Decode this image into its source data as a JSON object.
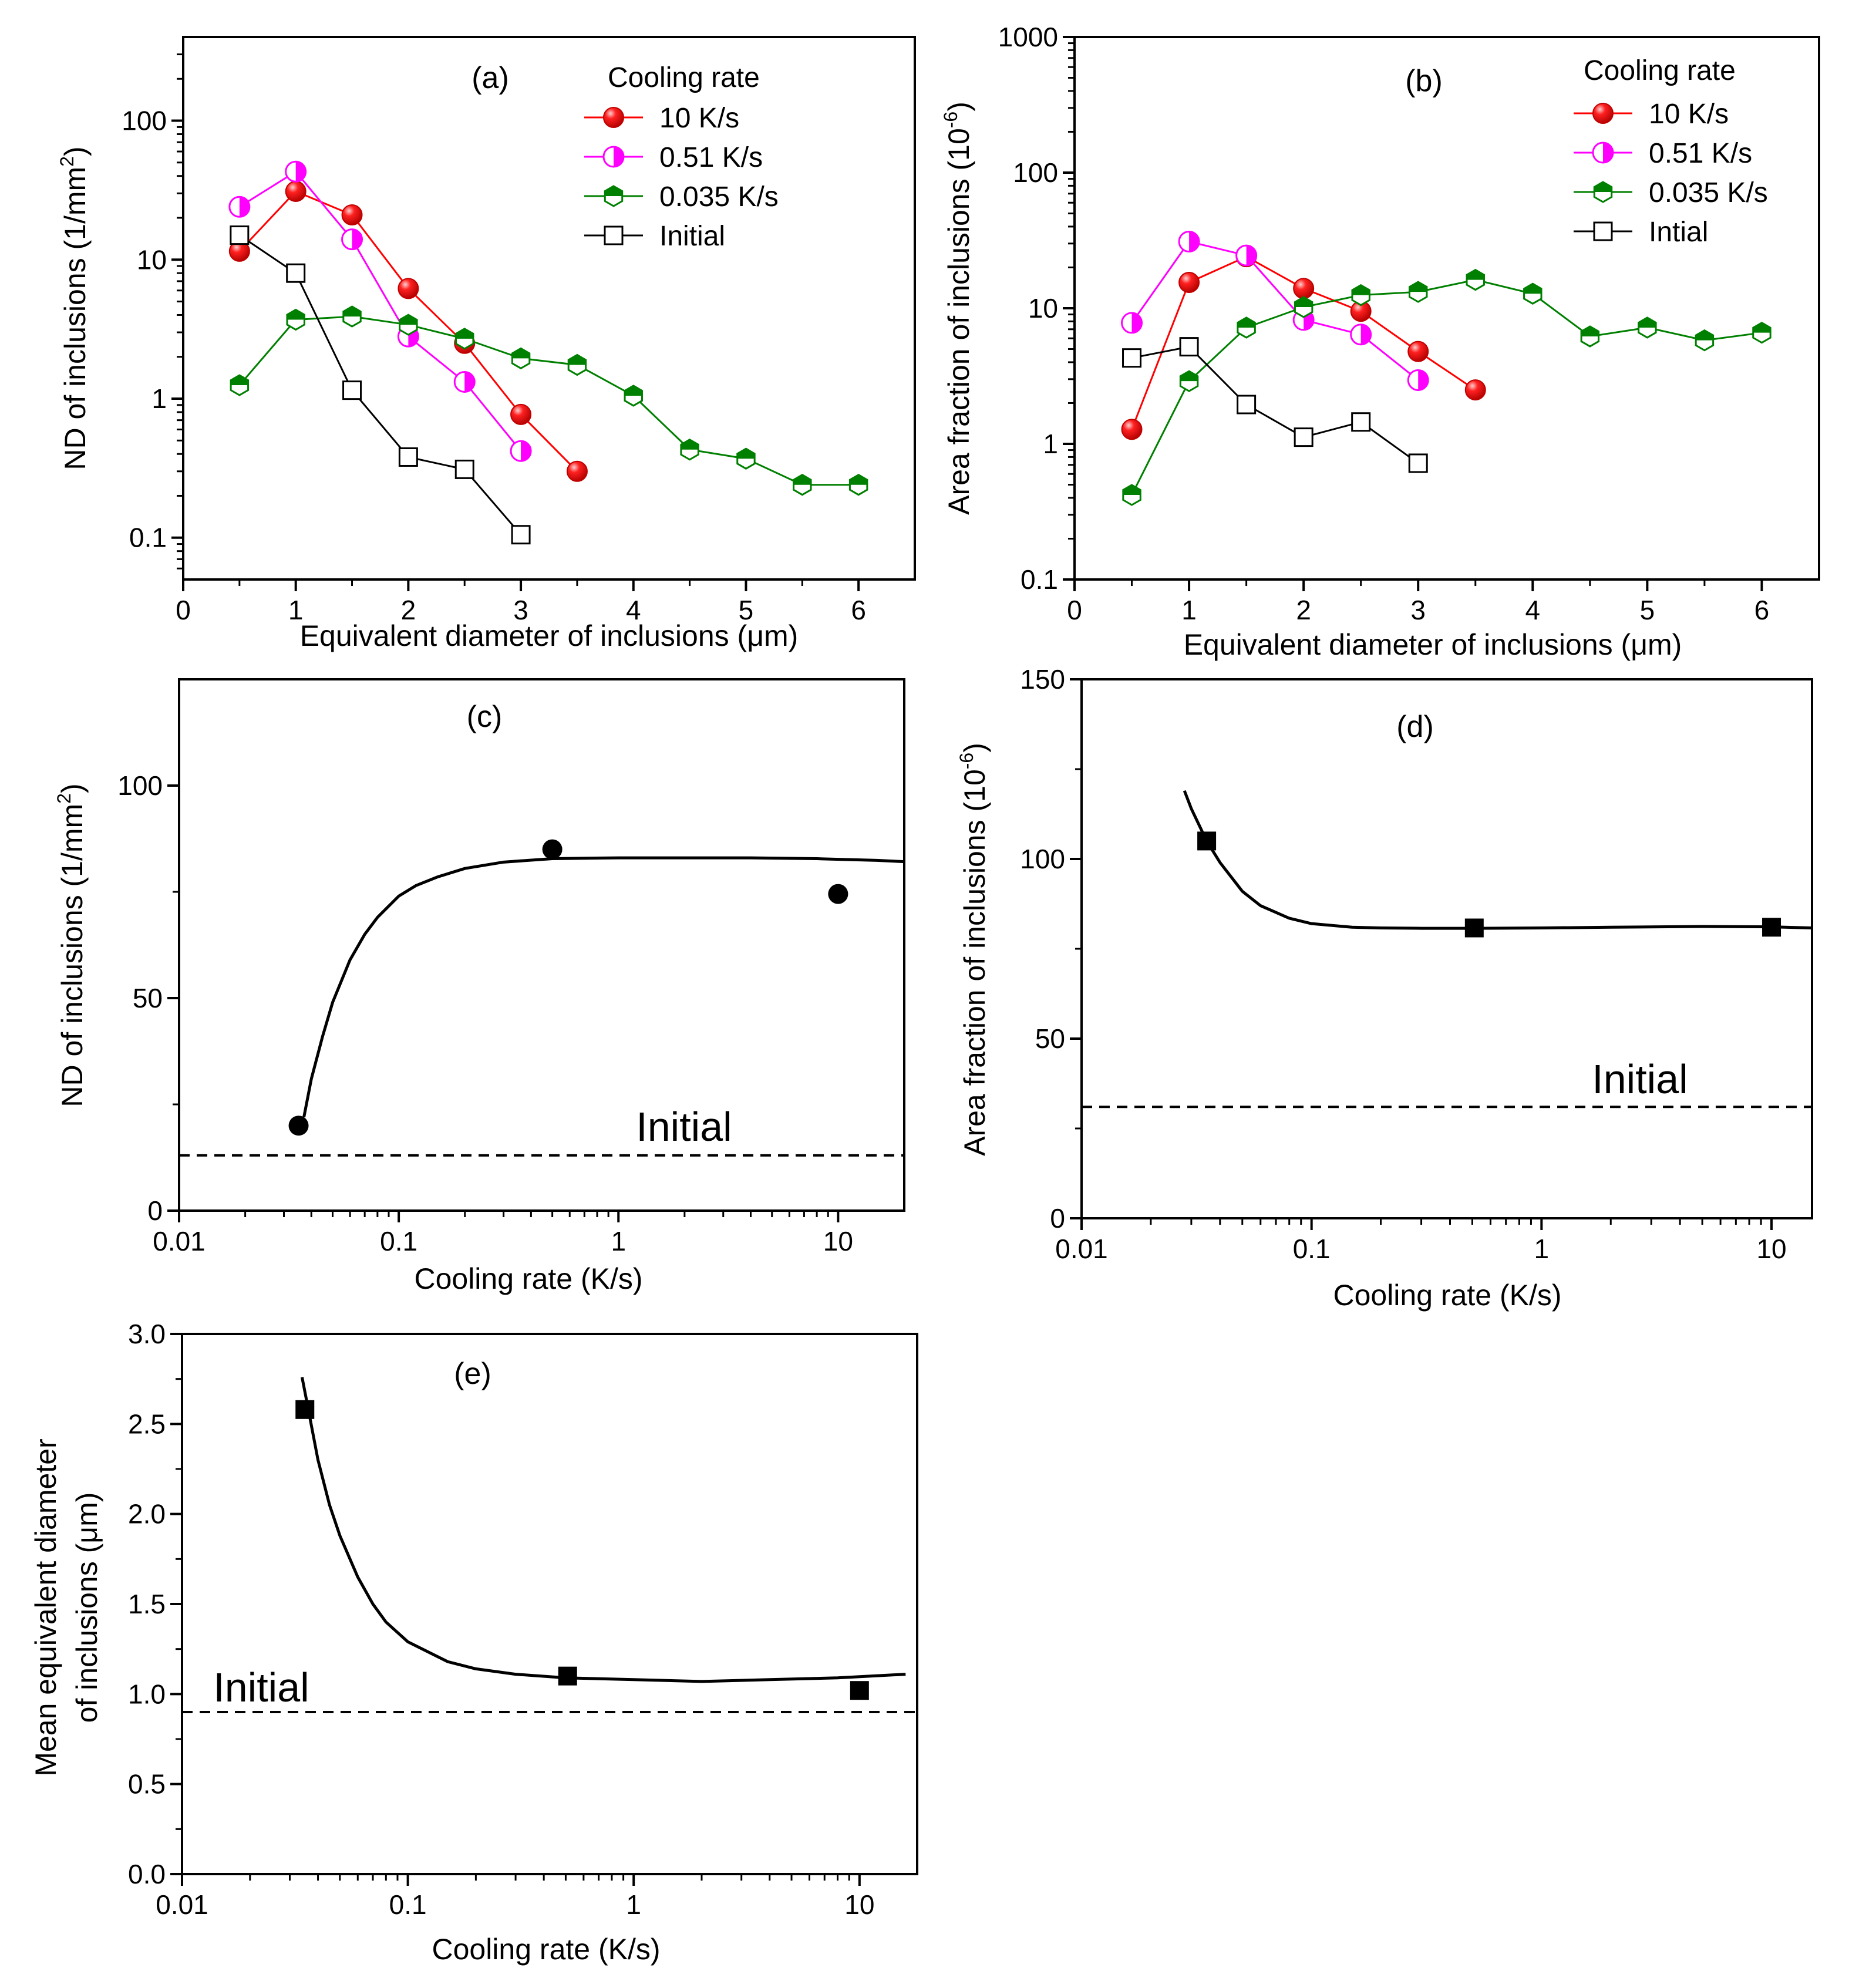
{
  "figure": {
    "panels": [
      "a",
      "b",
      "c",
      "d",
      "e"
    ]
  },
  "chart_data": [
    {
      "id": "a",
      "type": "line",
      "panel_label": "(a)",
      "xlabel_pre": "Equivalent diameter of inclusions (",
      "xlabel_unit": "μm",
      "xlabel_post": ")",
      "ylabel_pre": "ND of inclusions (1/mm",
      "ylabel_sup": "2",
      "ylabel_post": ")",
      "xscale": "linear",
      "yscale": "log",
      "xlim": [
        0,
        6.5
      ],
      "ylim": [
        0.05,
        400
      ],
      "xticks": [
        0,
        1,
        2,
        3,
        4,
        5,
        6
      ],
      "xtick_labels": [
        "0",
        "1",
        "2",
        "3",
        "4",
        "5",
        "6"
      ],
      "yticks": [
        0.1,
        1,
        10,
        100
      ],
      "ytick_labels": [
        "0.1",
        "1",
        "10",
        "100"
      ],
      "legend_title": "Cooling rate",
      "legend_position": "top-right",
      "series": [
        {
          "name": "10 K/s",
          "color": "#ff0000",
          "marker": "circle-filled",
          "x": [
            0.5,
            1.0,
            1.5,
            2.0,
            2.5,
            3.0,
            3.5
          ],
          "y": [
            11.5,
            31,
            21,
            6.2,
            2.5,
            0.77,
            0.3
          ]
        },
        {
          "name": "0.51 K/s",
          "color": "#ff00ff",
          "marker": "circle-half",
          "x": [
            0.5,
            1.0,
            1.5,
            2.0,
            2.5,
            3.0
          ],
          "y": [
            24,
            43,
            14,
            2.8,
            1.32,
            0.42
          ]
        },
        {
          "name": "0.035 K/s",
          "color": "#008000",
          "marker": "hexagon-half",
          "x": [
            0.5,
            1.0,
            1.5,
            2.0,
            2.5,
            3.0,
            3.5,
            4.0,
            4.5,
            5.0,
            5.5,
            6.0
          ],
          "y": [
            1.25,
            3.7,
            3.9,
            3.4,
            2.7,
            1.95,
            1.75,
            1.05,
            0.43,
            0.37,
            0.24,
            0.24
          ]
        },
        {
          "name": "Initial",
          "color": "#000000",
          "marker": "square-open",
          "x": [
            0.5,
            1.0,
            1.5,
            2.0,
            2.5,
            3.0
          ],
          "y": [
            15,
            8,
            1.15,
            0.38,
            0.31,
            0.105
          ]
        }
      ]
    },
    {
      "id": "b",
      "type": "line",
      "panel_label": "(b)",
      "xlabel_pre": "Equivalent diameter of inclusions (",
      "xlabel_unit": "μm",
      "xlabel_post": ")",
      "ylabel_pre": "Area fraction of inclusions (10",
      "ylabel_sup": "-6",
      "ylabel_post": ")",
      "xscale": "linear",
      "yscale": "log",
      "xlim": [
        0,
        6.5
      ],
      "ylim": [
        0.1,
        1000
      ],
      "xticks": [
        0,
        1,
        2,
        3,
        4,
        5,
        6
      ],
      "xtick_labels": [
        "0",
        "1",
        "2",
        "3",
        "4",
        "5",
        "6"
      ],
      "yticks": [
        0.1,
        1,
        10,
        100,
        1000
      ],
      "ytick_labels": [
        "0.1",
        "1",
        "10",
        "100",
        "1000"
      ],
      "legend_title": "Cooling rate",
      "legend_position": "top-right",
      "series": [
        {
          "name": "10 K/s",
          "color": "#ff0000",
          "marker": "circle-filled",
          "x": [
            0.5,
            1.0,
            1.5,
            2.0,
            2.5,
            3.0,
            3.5
          ],
          "y": [
            1.28,
            15.5,
            24,
            14,
            9.5,
            4.8,
            2.5
          ]
        },
        {
          "name": "0.51 K/s",
          "color": "#ff00ff",
          "marker": "circle-half",
          "x": [
            0.5,
            1.0,
            1.5,
            2.0,
            2.5,
            3.0
          ],
          "y": [
            7.8,
            31,
            24.5,
            8.2,
            6.4,
            2.95
          ]
        },
        {
          "name": "0.035 K/s",
          "color": "#008000",
          "marker": "hexagon-half",
          "x": [
            0.5,
            1.0,
            1.5,
            2.0,
            2.5,
            3.0,
            3.5,
            4.0,
            4.5,
            5.0,
            5.5,
            6.0
          ],
          "y": [
            0.42,
            2.9,
            7.2,
            10.2,
            12.5,
            13.2,
            16.2,
            12.8,
            6.2,
            7.2,
            5.8,
            6.6
          ]
        },
        {
          "name": "Intial",
          "color": "#000000",
          "marker": "square-open",
          "x": [
            0.5,
            1.0,
            1.5,
            2.0,
            2.5,
            3.0
          ],
          "y": [
            4.3,
            5.2,
            1.95,
            1.12,
            1.45,
            0.72
          ]
        }
      ]
    },
    {
      "id": "c",
      "type": "scatter",
      "panel_label": "(c)",
      "xlabel_pre": "Cooling rate (K/s)",
      "xlabel_unit": "",
      "xlabel_post": "",
      "ylabel_pre": "ND of inclusions (1/mm",
      "ylabel_sup": "2",
      "ylabel_post": ")",
      "xscale": "log",
      "yscale": "linear",
      "xlim": [
        0.01,
        20
      ],
      "ylim": [
        0,
        125
      ],
      "xticks": [
        0.01,
        0.1,
        1,
        10
      ],
      "xtick_labels": [
        "0.01",
        "0.1",
        "1",
        "10"
      ],
      "yticks": [
        0,
        50,
        100
      ],
      "ytick_labels": [
        "0",
        "50",
        "100"
      ],
      "marker": "circle",
      "points": {
        "x": [
          0.035,
          0.5,
          10
        ],
        "y": [
          20,
          85,
          74.5
        ]
      },
      "fit": {
        "x": [
          0.037,
          0.04,
          0.045,
          0.05,
          0.06,
          0.07,
          0.08,
          0.1,
          0.12,
          0.15,
          0.2,
          0.3,
          0.5,
          1,
          2,
          4,
          8,
          15,
          20
        ],
        "y": [
          22,
          31,
          41,
          49,
          59,
          65,
          69,
          74,
          76.5,
          78.5,
          80.5,
          82,
          82.8,
          83,
          83,
          83,
          82.8,
          82.4,
          82.1
        ]
      },
      "initial_value": 13,
      "initial_label": "Initial"
    },
    {
      "id": "d",
      "type": "scatter",
      "panel_label": "(d)",
      "xlabel_pre": "Cooling rate (K/s)",
      "xlabel_unit": "",
      "xlabel_post": "",
      "ylabel_pre": "Area fraction of inclusions (10",
      "ylabel_sup": "-6",
      "ylabel_post": ")",
      "xscale": "log",
      "yscale": "linear",
      "xlim": [
        0.01,
        15
      ],
      "ylim": [
        0,
        150
      ],
      "xticks": [
        0.01,
        0.1,
        1,
        10
      ],
      "xtick_labels": [
        "0.01",
        "0.1",
        "1",
        "10"
      ],
      "yticks": [
        0,
        50,
        100,
        150
      ],
      "ytick_labels": [
        "0",
        "50",
        "100",
        "150"
      ],
      "marker": "square",
      "points": {
        "x": [
          0.035,
          0.51,
          10
        ],
        "y": [
          105,
          80.8,
          81
        ]
      },
      "fit": {
        "x": [
          0.028,
          0.03,
          0.035,
          0.04,
          0.05,
          0.06,
          0.08,
          0.1,
          0.15,
          0.2,
          0.3,
          0.5,
          1,
          2,
          5,
          10,
          15
        ],
        "y": [
          119,
          114,
          105,
          99,
          91,
          87,
          83.5,
          82,
          81,
          80.8,
          80.7,
          80.7,
          80.8,
          81,
          81.2,
          81.1,
          80.8
        ]
      },
      "initial_value": 31,
      "initial_label": "Initial"
    },
    {
      "id": "e",
      "type": "scatter",
      "panel_label": "(e)",
      "xlabel_pre": "Cooling rate (K/s)",
      "xlabel_unit": "",
      "xlabel_post": "",
      "ylabel_line1": "Mean equivalent diameter",
      "ylabel_pre": "of inclusions (",
      "ylabel_unit": "μm",
      "ylabel_post": ")",
      "xscale": "log",
      "yscale": "linear",
      "xlim": [
        0.01,
        18
      ],
      "ylim": [
        0,
        3.0
      ],
      "xticks": [
        0.01,
        0.1,
        1,
        10
      ],
      "xtick_labels": [
        "0.01",
        "0.1",
        "1",
        "10"
      ],
      "yticks": [
        0.0,
        0.5,
        1.0,
        1.5,
        2.0,
        2.5,
        3.0
      ],
      "ytick_labels": [
        "0.0",
        "0.5",
        "1.0",
        "1.5",
        "2.0",
        "2.5",
        "3.0"
      ],
      "marker": "square",
      "points": {
        "x": [
          0.035,
          0.51,
          10
        ],
        "y": [
          2.58,
          1.1,
          1.02
        ]
      },
      "fit": {
        "x": [
          0.034,
          0.036,
          0.04,
          0.045,
          0.05,
          0.06,
          0.07,
          0.08,
          0.1,
          0.15,
          0.2,
          0.3,
          0.5,
          1,
          2,
          4,
          8,
          16
        ],
        "y": [
          2.76,
          2.6,
          2.3,
          2.05,
          1.88,
          1.65,
          1.5,
          1.4,
          1.29,
          1.18,
          1.14,
          1.11,
          1.09,
          1.08,
          1.07,
          1.08,
          1.09,
          1.11
        ]
      },
      "initial_value": 0.9,
      "initial_label": "Initial"
    }
  ]
}
